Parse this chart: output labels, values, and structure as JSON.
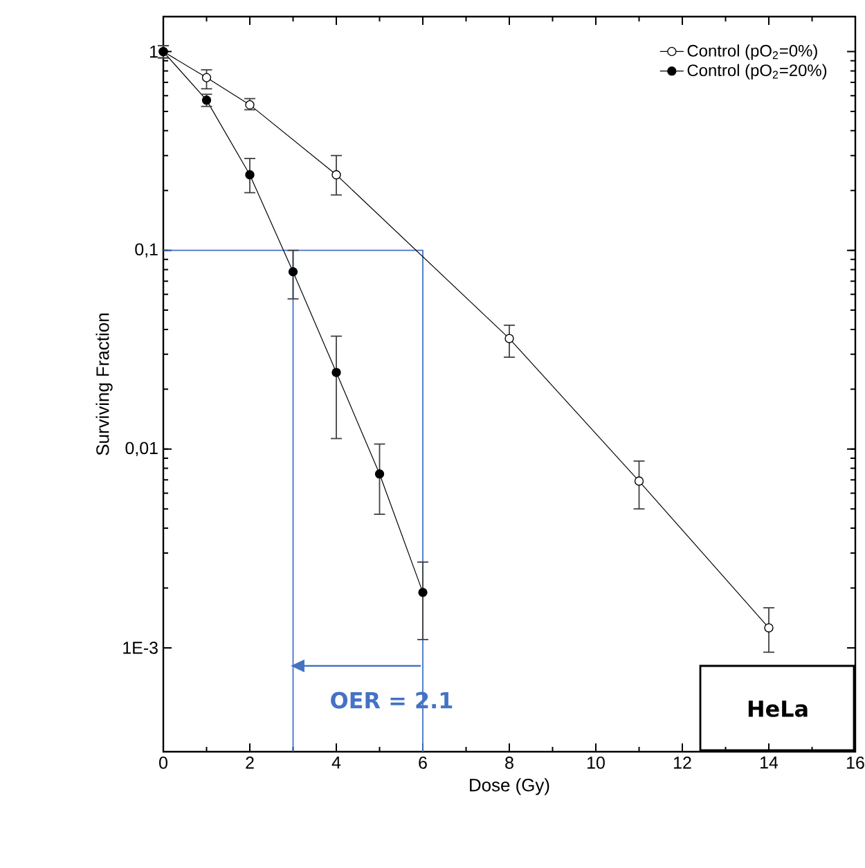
{
  "chart_data": {
    "type": "line",
    "xlabel": "Dose (Gy)",
    "ylabel": "Surviving Fraction",
    "log": "y",
    "xlim": [
      0,
      16
    ],
    "xticks": [
      0,
      2,
      4,
      6,
      8,
      10,
      12,
      14,
      16
    ],
    "ylim": [
      0.0003,
      1.5
    ],
    "yticks": [
      {
        "value": 0.001,
        "label": "1E-3"
      },
      {
        "value": 0.01,
        "label": "0,01"
      },
      {
        "value": 0.1,
        "label": "0,1"
      },
      1
    ],
    "marker": "circle",
    "legend": "top right",
    "series": [
      {
        "color": "#4472c4",
        "marker": "none",
        "x": [
          0,
          6,
          6
        ],
        "values": [
          0.1,
          0.1,
          0.0003
        ]
      },
      {
        "color": "#4472c4",
        "marker": "none",
        "x": [
          3,
          3
        ],
        "values": [
          0.1,
          0.0003
        ]
      },
      {
        "name": "Control (pO$_{2}$=0%)",
        "color": "#000000",
        "x": [
          0,
          1,
          2,
          4,
          8,
          11,
          14
        ],
        "values": [
          1.0,
          0.74,
          0.54,
          0.24,
          0.036,
          0.0069,
          0.00126
        ],
        "errors": [
          [
            0.93,
            1.07
          ],
          [
            0.65,
            0.81
          ],
          [
            0.51,
            0.58
          ],
          [
            0.19,
            0.3
          ],
          [
            0.029,
            0.042
          ],
          [
            0.005,
            0.0087
          ],
          [
            0.00095,
            0.00159
          ]
        ]
      },
      {
        "name": "Control (pO$_{2}$=20%)",
        "color": "#000000",
        "x": [
          0,
          1,
          2,
          3,
          4,
          5,
          6
        ],
        "values": [
          1.0,
          0.57,
          0.24,
          0.078,
          0.0243,
          0.0075,
          0.0019
        ],
        "errors": [
          [
            0.93,
            1.07
          ],
          [
            0.53,
            0.61
          ],
          [
            0.195,
            0.29
          ],
          [
            0.057,
            0.1
          ],
          [
            0.0113,
            0.037
          ],
          [
            0.0047,
            0.0106
          ],
          [
            0.0011,
            0.0027
          ]
        ]
      }
    ],
    "annotations": [
      "OER = 2.1",
      "HeLa"
    ]
  }
}
